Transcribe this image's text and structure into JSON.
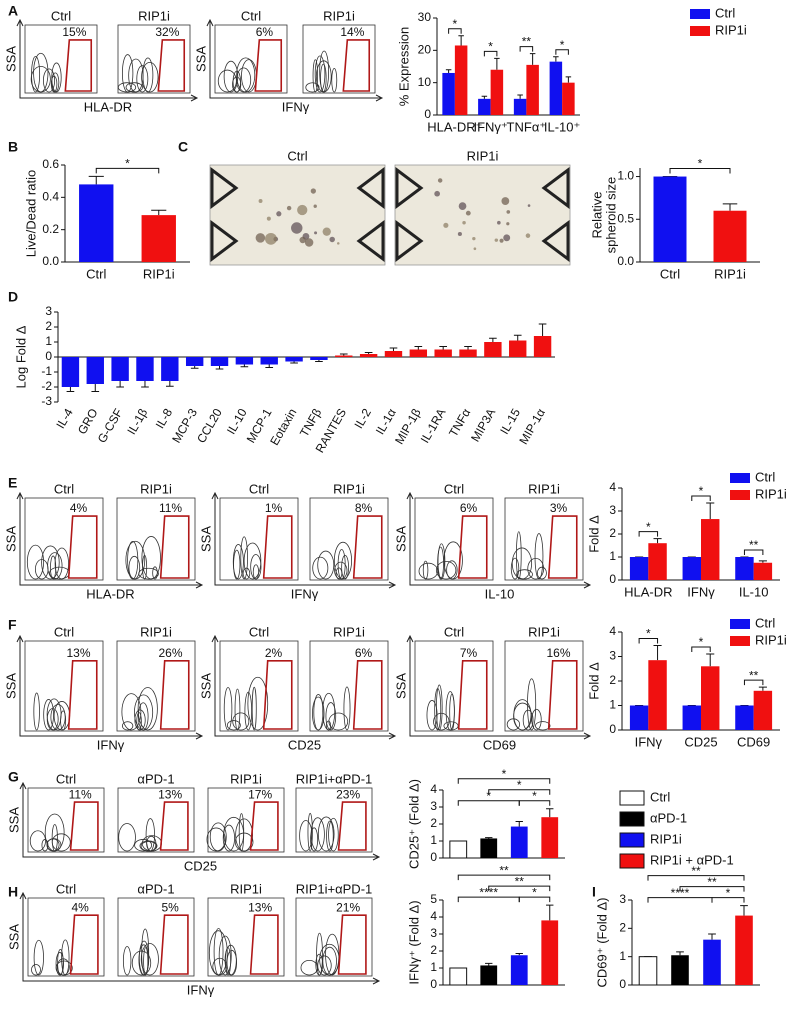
{
  "panel_labels": [
    "A",
    "B",
    "C",
    "D",
    "E",
    "F",
    "G",
    "H",
    "I"
  ],
  "flow_rows": [
    {
      "groups": [
        {
          "y_label": "SSA",
          "x_label": "HLA-DR",
          "plots": [
            {
              "title": "Ctrl",
              "gate": "15%"
            },
            {
              "title": "RIP1i",
              "gate": "32%"
            }
          ]
        },
        {
          "y_label": "SSA",
          "x_label": "IFNγ",
          "plots": [
            {
              "title": "Ctrl",
              "gate": "6%"
            },
            {
              "title": "RIP1i",
              "gate": "14%"
            }
          ]
        }
      ]
    },
    {
      "groups": [
        {
          "y_label": "SSA",
          "x_label": "HLA-DR",
          "plots": [
            {
              "title": "Ctrl",
              "gate": "4%"
            },
            {
              "title": "RIP1i",
              "gate": "11%"
            }
          ]
        },
        {
          "y_label": "SSA",
          "x_label": "IFNγ",
          "plots": [
            {
              "title": "Ctrl",
              "gate": "1%"
            },
            {
              "title": "RIP1i",
              "gate": "8%"
            }
          ]
        },
        {
          "y_label": "SSA",
          "x_label": "IL-10",
          "plots": [
            {
              "title": "Ctrl",
              "gate": "6%"
            },
            {
              "title": "RIP1i",
              "gate": "3%"
            }
          ]
        }
      ]
    },
    {
      "groups": [
        {
          "y_label": "SSA",
          "x_label": "IFNγ",
          "plots": [
            {
              "title": "Ctrl",
              "gate": "13%"
            },
            {
              "title": "RIP1i",
              "gate": "26%"
            }
          ]
        },
        {
          "y_label": "SSA",
          "x_label": "CD25",
          "plots": [
            {
              "title": "Ctrl",
              "gate": "2%"
            },
            {
              "title": "RIP1i",
              "gate": "6%"
            }
          ]
        },
        {
          "y_label": "SSA",
          "x_label": "CD69",
          "plots": [
            {
              "title": "Ctrl",
              "gate": "7%"
            },
            {
              "title": "RIP1i",
              "gate": "16%"
            }
          ]
        }
      ]
    },
    {
      "groups": [
        {
          "y_label": "SSA",
          "x_label": "CD25",
          "plots": [
            {
              "title": "Ctrl",
              "gate": "11%"
            },
            {
              "title": "αPD-1",
              "gate": "13%"
            },
            {
              "title": "RIP1i",
              "gate": "17%"
            },
            {
              "title": "RIP1i+αPD-1",
              "gate": "23%"
            }
          ]
        }
      ]
    },
    {
      "groups": [
        {
          "y_label": "SSA",
          "x_label": "IFNγ",
          "plots": [
            {
              "title": "Ctrl",
              "gate": "4%"
            },
            {
              "title": "αPD-1",
              "gate": "5%"
            },
            {
              "title": "RIP1i",
              "gate": "13%"
            },
            {
              "title": "RIP1i+αPD-1",
              "gate": "21%"
            }
          ]
        }
      ]
    }
  ],
  "micrographs": [
    "Ctrl",
    "RIP1i"
  ],
  "chart_data": [
    {
      "type": "bar",
      "y_label": "% Expression",
      "categories": [
        "HLA-DR⁺",
        "IFNγ⁺",
        "TNFα⁺",
        "IL-10⁺"
      ],
      "series": [
        {
          "name": "Ctrl",
          "color": "#1010f0",
          "values": [
            13,
            5,
            5,
            16.5
          ],
          "errors": [
            1,
            0.8,
            1.2,
            1.5
          ]
        },
        {
          "name": "RIP1i",
          "color": "#f01010",
          "values": [
            21.5,
            14,
            15.5,
            10
          ],
          "errors": [
            3,
            3.5,
            3.5,
            1.8
          ]
        }
      ],
      "ylim": [
        0,
        30
      ],
      "yticks": [
        0,
        10,
        20,
        30
      ],
      "annotations": [
        "*",
        "*",
        "**",
        "*"
      ]
    },
    {
      "type": "bar",
      "y_label": "Live/Dead ratio",
      "categories": [
        "Ctrl",
        "RIP1i"
      ],
      "values": [
        0.48,
        0.29
      ],
      "errors": [
        0.05,
        0.03
      ],
      "colors": [
        "#1010f0",
        "#f01010"
      ],
      "ylim": [
        0,
        0.6
      ],
      "yticks": [
        {
          "value": 0,
          "label": "0.0"
        },
        0.2,
        0.4,
        0.6
      ],
      "annotations": [
        "*"
      ]
    },
    {
      "type": "bar",
      "y_label": [
        "Relative",
        "spheroid size"
      ],
      "categories": [
        "Ctrl",
        "RIP1i"
      ],
      "values": [
        1.0,
        0.6
      ],
      "errors": [
        0,
        0.08
      ],
      "colors": [
        "#1010f0",
        "#f01010"
      ],
      "ylim": [
        0,
        1.1
      ],
      "yticks": [
        {
          "value": 0,
          "label": "0.0"
        },
        0.5,
        {
          "value": 1,
          "label": "1.0"
        }
      ],
      "annotations": [
        "*"
      ]
    },
    {
      "type": "bar",
      "y_label": "Log Fold Δ",
      "categories": [
        "IL-4",
        "GRO",
        "G-CSF",
        "IL-1β",
        "IL-8",
        "MCP-3",
        "CCL20",
        "IL-10",
        "MCP-1",
        "Eotaxin",
        "TNFβ",
        "RANTES",
        "IL-2",
        "IL-1α",
        "MIP-1β",
        "IL-1RA",
        "TNFα",
        "MIP3A",
        "IL-15",
        "MIP-1α"
      ],
      "values": [
        -2.0,
        -1.8,
        -1.6,
        -1.6,
        -1.6,
        -0.6,
        -0.6,
        -0.5,
        -0.5,
        -0.3,
        -0.2,
        0.1,
        0.2,
        0.4,
        0.5,
        0.5,
        0.5,
        1.0,
        1.1,
        1.4
      ],
      "errors": [
        0.3,
        0.5,
        0.4,
        0.4,
        0.35,
        0.15,
        0.2,
        0.15,
        0.2,
        0.1,
        0.1,
        0.1,
        0.1,
        0.2,
        0.2,
        0.2,
        0.2,
        0.25,
        0.35,
        0.8
      ],
      "colors": [
        "#1010f0",
        "#1010f0",
        "#1010f0",
        "#1010f0",
        "#1010f0",
        "#1010f0",
        "#1010f0",
        "#1010f0",
        "#1010f0",
        "#1010f0",
        "#1010f0",
        "#f01010",
        "#f01010",
        "#f01010",
        "#f01010",
        "#f01010",
        "#f01010",
        "#f01010",
        "#f01010",
        "#f01010"
      ],
      "ylim": [
        -3,
        3
      ],
      "yticks": [
        -3,
        -2,
        -1,
        0,
        1,
        2,
        3
      ]
    },
    {
      "type": "bar",
      "y_label": "Fold Δ",
      "categories": [
        "HLA-DR",
        "IFNγ",
        "IL-10"
      ],
      "series": [
        {
          "name": "Ctrl",
          "color": "#1010f0",
          "values": [
            1,
            1,
            1
          ],
          "errors": [
            0,
            0,
            0
          ]
        },
        {
          "name": "RIP1i",
          "color": "#f01010",
          "values": [
            1.6,
            2.65,
            0.75
          ],
          "errors": [
            0.2,
            0.7,
            0.08
          ]
        }
      ],
      "ylim": [
        0,
        4
      ],
      "yticks": [
        0,
        1,
        2,
        3,
        4
      ],
      "annotations": [
        "*",
        "*",
        "**"
      ]
    },
    {
      "type": "bar",
      "y_label": "Fold Δ",
      "categories": [
        "IFNγ",
        "CD25",
        "CD69"
      ],
      "series": [
        {
          "name": "Ctrl",
          "color": "#1010f0",
          "values": [
            1,
            1,
            1
          ],
          "errors": [
            0,
            0,
            0
          ]
        },
        {
          "name": "RIP1i",
          "color": "#f01010",
          "values": [
            2.85,
            2.6,
            1.6
          ],
          "errors": [
            0.6,
            0.5,
            0.15
          ]
        }
      ],
      "ylim": [
        0,
        4
      ],
      "yticks": [
        0,
        1,
        2,
        3,
        4
      ],
      "annotations": [
        "*",
        "*",
        "**"
      ]
    },
    {
      "type": "bar",
      "y_label": "CD25⁺ (Fold Δ)",
      "categories": [
        null,
        null,
        null,
        null
      ],
      "values": [
        1,
        1.15,
        1.85,
        2.4
      ],
      "errors": [
        0,
        0.05,
        0.3,
        0.5
      ],
      "colors": [
        "#ffffff",
        "#000000",
        "#1010f0",
        "#f01010"
      ],
      "legend": [
        "Ctrl",
        "αPD-1",
        "RIP1i",
        "RIP1i + αPD-1"
      ],
      "ylim": [
        0,
        4
      ],
      "yticks": [
        0,
        1,
        2,
        3,
        4
      ],
      "annotations": [
        "*",
        "*",
        "*",
        "*"
      ]
    },
    {
      "type": "bar",
      "y_label": "IFNγ⁺ (Fold Δ)",
      "categories": [
        null,
        null,
        null,
        null
      ],
      "values": [
        1,
        1.15,
        1.75,
        3.8
      ],
      "errors": [
        0,
        0.12,
        0.1,
        0.9
      ],
      "colors": [
        "#ffffff",
        "#000000",
        "#1010f0",
        "#f01010"
      ],
      "ylim": [
        0,
        5
      ],
      "yticks": [
        0,
        1,
        2,
        3,
        4,
        5
      ],
      "annotations": [
        "**",
        "**",
        "****",
        "*"
      ]
    },
    {
      "type": "bar",
      "y_label": "CD69⁺ (Fold Δ)",
      "categories": [
        null,
        null,
        null,
        null
      ],
      "values": [
        1,
        1.05,
        1.6,
        2.45
      ],
      "errors": [
        0,
        0.12,
        0.2,
        0.35
      ],
      "colors": [
        "#ffffff",
        "#000000",
        "#1010f0",
        "#f01010"
      ],
      "ylim": [
        0,
        3
      ],
      "yticks": [
        0,
        1,
        2,
        3
      ],
      "annotations": [
        "**",
        "**",
        "****",
        "*"
      ]
    }
  ]
}
